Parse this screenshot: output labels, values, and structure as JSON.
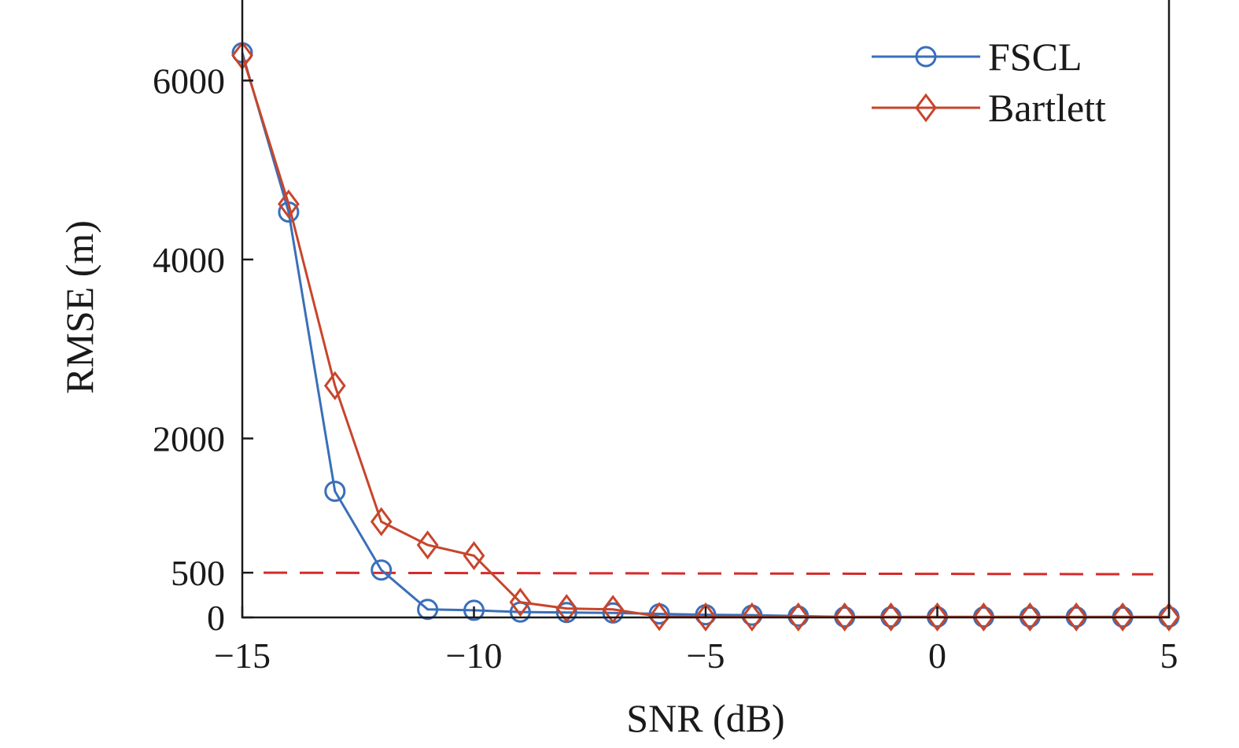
{
  "chart_data": {
    "type": "line",
    "xlabel": "SNR (dB)",
    "ylabel": "RMSE (m)",
    "xlim": [
      -15,
      5
    ],
    "ylim": [
      0,
      6900
    ],
    "x_ticks": [
      -15,
      -10,
      -5,
      0,
      5
    ],
    "x_tick_labels": [
      "−15",
      "−10",
      "−5",
      "0",
      "5"
    ],
    "y_ticks": [
      0,
      500,
      2000,
      4000,
      6000
    ],
    "y_tick_labels": [
      "0",
      "500",
      "2000",
      "4000",
      "6000"
    ],
    "x": [
      -15,
      -14,
      -13,
      -12,
      -11,
      -10,
      -9,
      -8,
      -7,
      -6,
      -5,
      -4,
      -3,
      -2,
      -1,
      0,
      1,
      2,
      3,
      4,
      5
    ],
    "series": [
      {
        "name": "FSCL",
        "color": "#3a6fba",
        "marker": "circle",
        "values": [
          6310,
          4530,
          1410,
          530,
          90,
          80,
          60,
          55,
          50,
          40,
          30,
          25,
          15,
          5,
          5,
          5,
          5,
          5,
          5,
          5,
          5
        ]
      },
      {
        "name": "Bartlett",
        "color": "#c8452b",
        "marker": "diamond",
        "values": [
          6280,
          4620,
          2590,
          1070,
          810,
          690,
          170,
          100,
          90,
          10,
          5,
          5,
          5,
          5,
          5,
          5,
          5,
          5,
          5,
          5,
          5
        ]
      }
    ],
    "reference_line": {
      "y": 500,
      "color": "#d62a2a",
      "style": "dashed"
    },
    "legend": {
      "position": "top-right",
      "entries": [
        "FSCL",
        "Bartlett"
      ]
    },
    "grid": false
  }
}
